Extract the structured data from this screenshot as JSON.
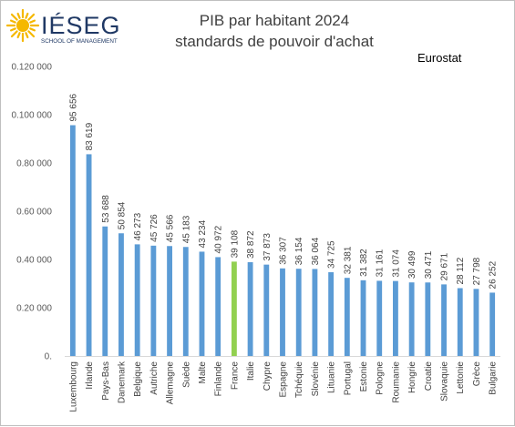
{
  "brand": {
    "logo_icon": "sun-logo-icon",
    "name": "IÉSEG",
    "tagline": "SCHOOL OF MANAGEMENT",
    "color": "#1f3864",
    "accent": "#f5b800"
  },
  "source": "Eurostat",
  "chart_data": {
    "type": "bar",
    "title": "PIB par habitant 2024",
    "subtitle": "standards de pouvoir d'achat",
    "xlabel": "",
    "ylabel": "",
    "ylim": [
      0,
      120000
    ],
    "grid": false,
    "legend": "none",
    "y_tick_labels": [
      "0.",
      "0.20 000",
      "0.40 000",
      "0.60 000",
      "0.80 000",
      "0.100 000",
      "0.120 000"
    ],
    "categories": [
      "Luxembourg",
      "Irlande",
      "Pays-Bas",
      "Danemark",
      "Belgique",
      "Autriche",
      "Allemagne",
      "Suède",
      "Malte",
      "Finlande",
      "France",
      "Italie",
      "Chypre",
      "Espagne",
      "Tchéquie",
      "Slovénie",
      "Lituanie",
      "Portugal",
      "Estonie",
      "Pologne",
      "Roumanie",
      "Hongrie",
      "Croatie",
      "Slovaquie",
      "Lettonie",
      "Grèce",
      "Bulgarie"
    ],
    "values": [
      95656,
      83619,
      53688,
      50854,
      46273,
      45726,
      45566,
      45183,
      43234,
      40972,
      39108,
      38872,
      37873,
      36307,
      36154,
      36064,
      34725,
      32381,
      31382,
      31161,
      31074,
      30499,
      30471,
      29671,
      28112,
      27798,
      26252
    ],
    "value_labels": [
      "95 656",
      "83 619",
      "53 688",
      "50 854",
      "46 273",
      "45 726",
      "45 566",
      "45 183",
      "43 234",
      "40 972",
      "39 108",
      "38 872",
      "37 873",
      "36 307",
      "36 154",
      "36 064",
      "34 725",
      "32 381",
      "31 382",
      "31 161",
      "31 074",
      "30 499",
      "30 471",
      "29 671",
      "28 112",
      "27 798",
      "26 252"
    ],
    "bar_color": "#5b9bd5",
    "highlight": {
      "category": "France",
      "color": "#92d050"
    }
  }
}
